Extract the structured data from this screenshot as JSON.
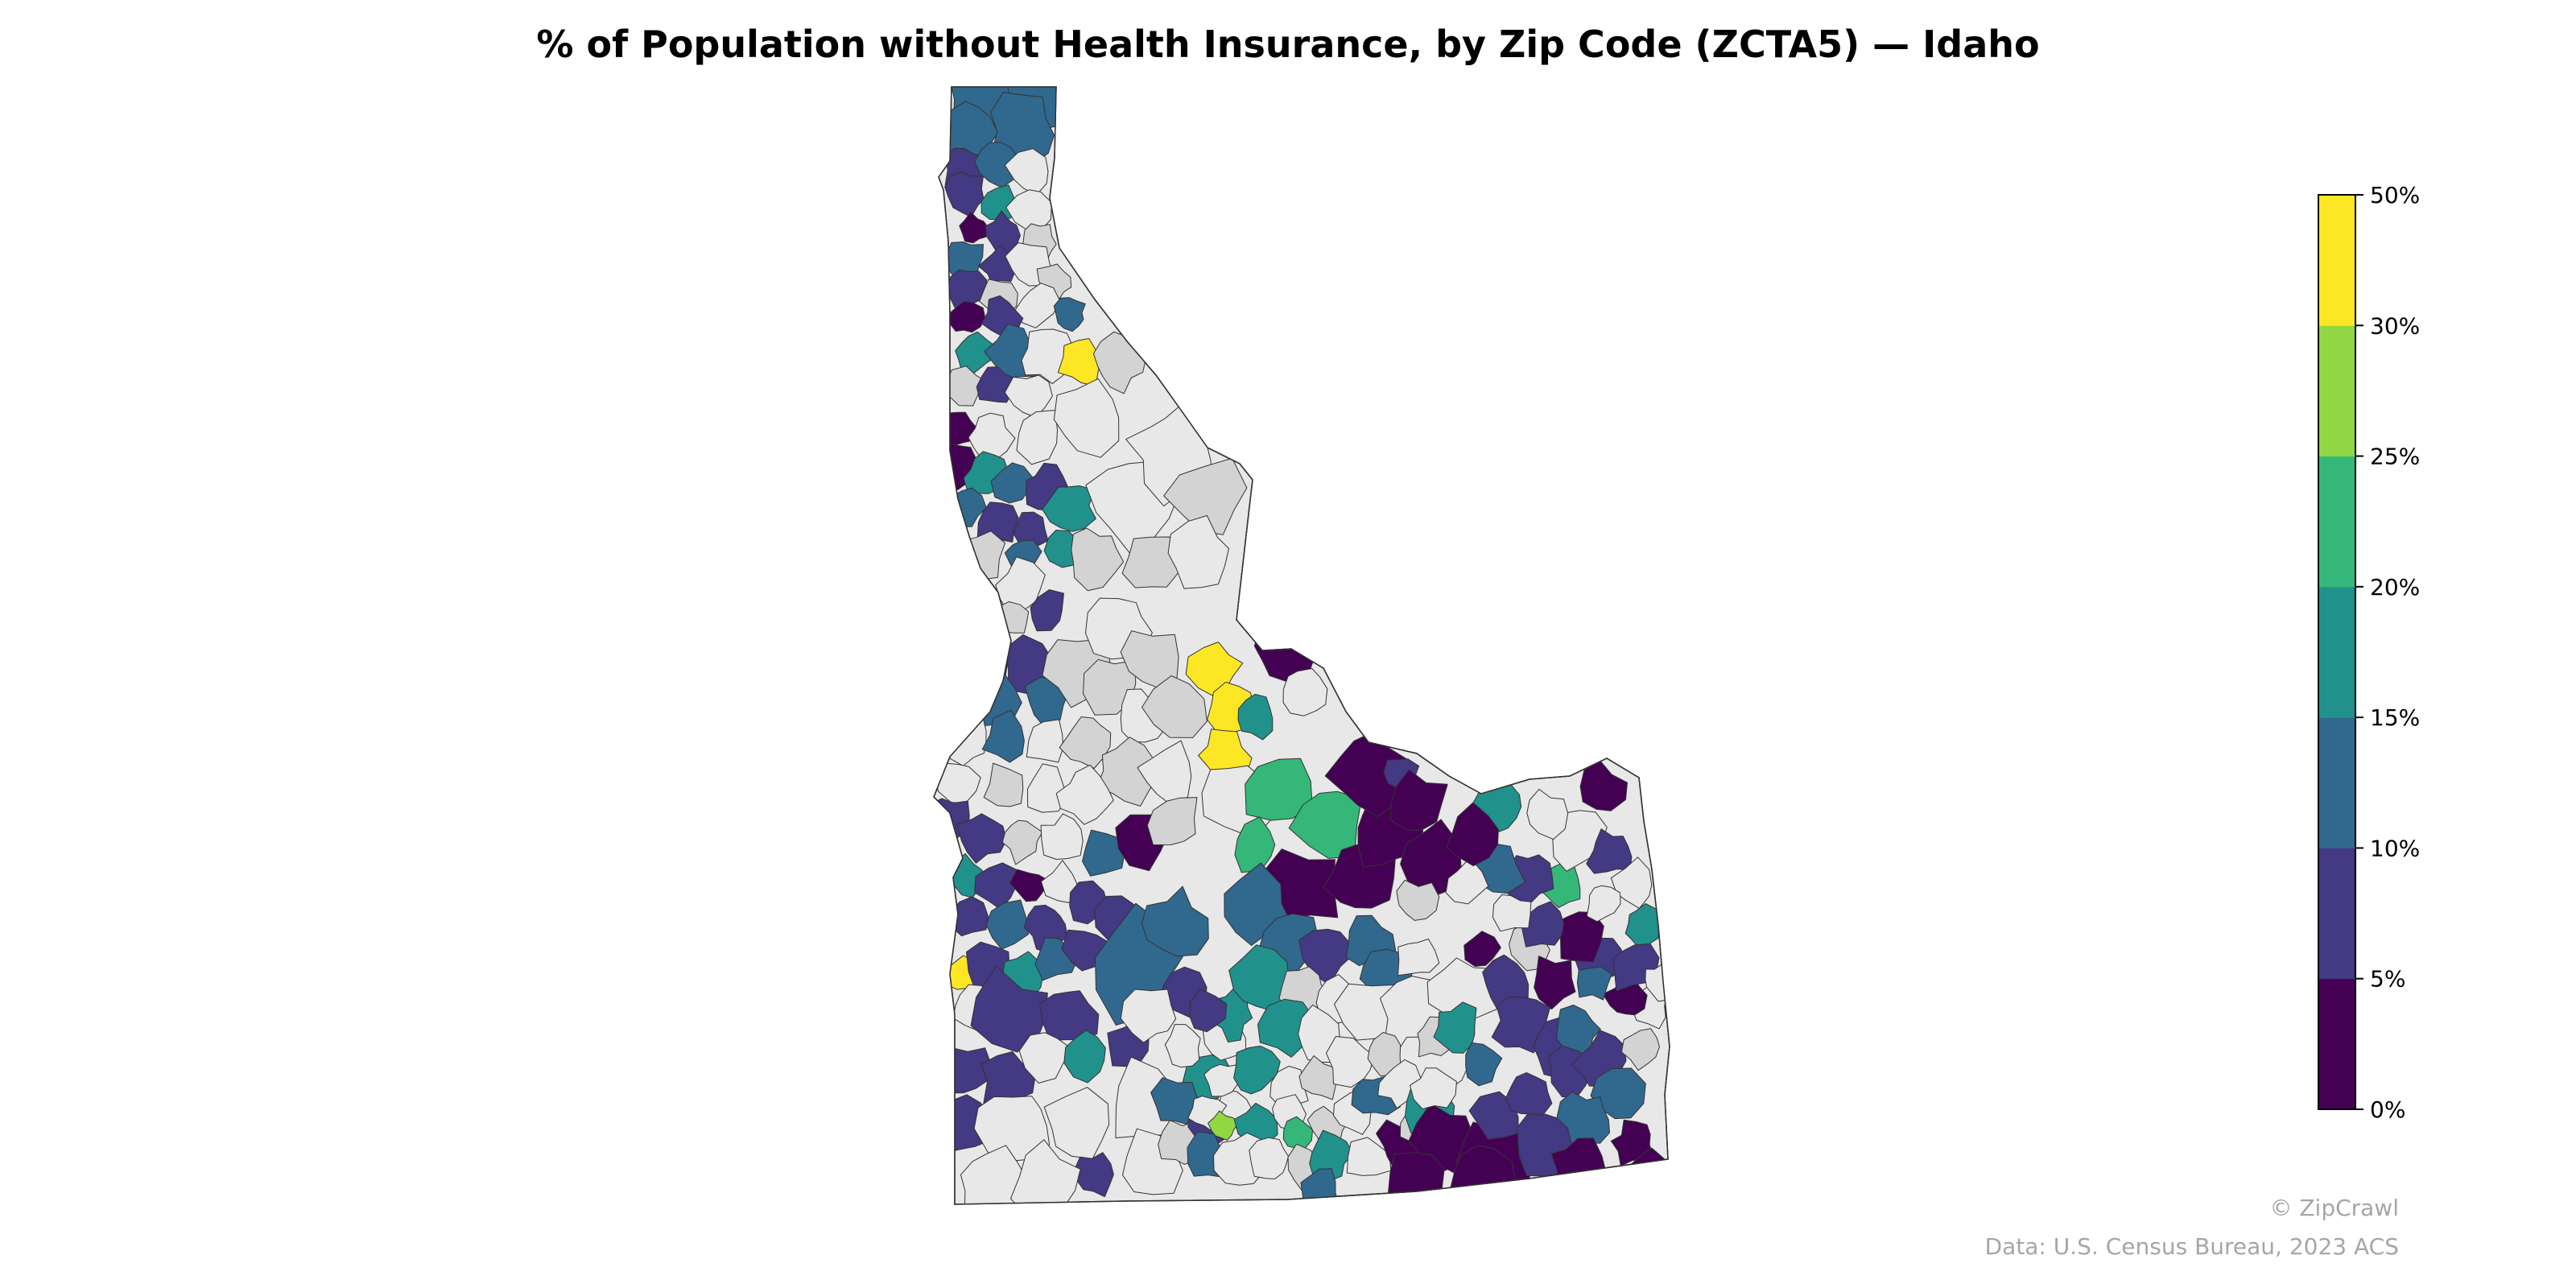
{
  "map": {
    "title": "% of Population without Health Insurance, by Zip Code (ZCTA5) — Idaho",
    "region": "Idaho",
    "geography": "Zip Code (ZCTA5)",
    "no_data_colors": [
      "#e8e8e8",
      "#d3d3d3"
    ],
    "border_color": "#333333",
    "legend": {
      "type": "stepped",
      "labels": [
        "0%",
        "5%",
        "10%",
        "15%",
        "20%",
        "25%",
        "30%",
        "50%"
      ],
      "bins": [
        {
          "min": 0,
          "max": 5,
          "color": "#440154"
        },
        {
          "min": 5,
          "max": 10,
          "color": "#443983"
        },
        {
          "min": 10,
          "max": 15,
          "color": "#31688e"
        },
        {
          "min": 15,
          "max": 20,
          "color": "#21918c"
        },
        {
          "min": 20,
          "max": 25,
          "color": "#35b779"
        },
        {
          "min": 25,
          "max": 30,
          "color": "#90d743"
        },
        {
          "min": 30,
          "max": 50,
          "color": "#fde725"
        }
      ]
    },
    "credit": "© ZipCrawl",
    "source": "Data: U.S. Census Bureau, 2023 ACS"
  }
}
